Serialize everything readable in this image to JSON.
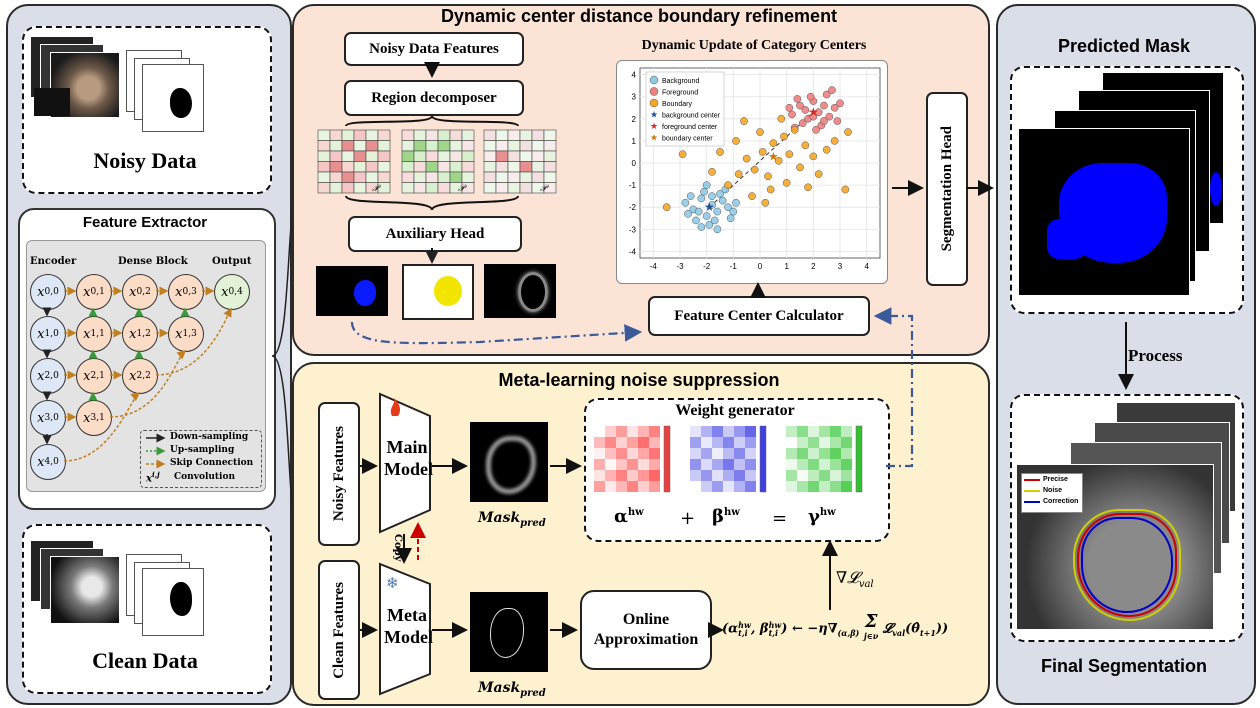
{
  "left_panel": {
    "noisy_data_label": "Noisy Data",
    "feature_extractor_title": "Feature Extractor",
    "encoder_label": "Encoder",
    "dense_block_label": "Dense Block",
    "output_label": "Output",
    "clean_data_label": "Clean Data",
    "nodes": {
      "n00": "0,0",
      "n01": "0,1",
      "n02": "0,2",
      "n03": "0,3",
      "n04": "0,4",
      "n10": "1,0",
      "n11": "1,1",
      "n12": "1,2",
      "n13": "1,3",
      "n20": "2,0",
      "n21": "2,1",
      "n22": "2,2",
      "n30": "3,0",
      "n31": "3,1",
      "n40": "4,0"
    },
    "node_symbol": "x",
    "legend": {
      "down": "Down-sampling",
      "up": "Up-sampling",
      "skip": "Skip Connection",
      "conv_symbol": "x",
      "conv_sup": "i,j",
      "conv": "Convolution"
    }
  },
  "dcd": {
    "title": "Dynamic center distance boundary refinement",
    "noisy_features": "Noisy Data Features",
    "region_decomposer": "Region decomposer",
    "p_labels": [
      "𝒫",
      "𝒫",
      "𝒫"
    ],
    "auxiliary_head": "Auxiliary Head",
    "chart_title": "Dynamic Update of Category Centers",
    "feature_center_calculator": "Feature Center Calculator",
    "segmentation_head": "Segmentation Head"
  },
  "meta": {
    "title": "Meta-learning noise suppression",
    "noisy_features": "Noisy Features",
    "clean_features": "Clean Features",
    "main_model": "Main\nModel",
    "meta_model": "Meta\nModel",
    "copy": "Copy",
    "mask_pred": "Mask",
    "mask_sub": "pred",
    "weight_generator": "Weight generator",
    "alpha": "α",
    "beta": "β",
    "gamma": "γ",
    "hw": "hw",
    "plus": "+",
    "equals": "=",
    "online_approx": "Online\nApproximation",
    "grad_label": "∇𝓛",
    "grad_sub": "val",
    "formula": "(α, β) ← −η∇(α,β) Σ 𝓛val(θ̂t+1))",
    "formula_lhs": "(α",
    "formula_rhs": "← −η∇",
    "formula_sum": "Σ",
    "formula_sum_sub": "j∈ν",
    "formula_loss": "𝓛",
    "formula_loss_sub": "val",
    "formula_theta": "(θ̂",
    "formula_theta_sub": "t+1",
    "formula_end": "))",
    "formula_sub_ab": "(α,β)",
    "formula_comma": ",",
    "formula_beta": "β",
    "formula_tihw": "hw",
    "formula_ti": "t,i"
  },
  "right_panel": {
    "predicted_mask": "Predicted Mask",
    "process": "Process",
    "final_segmentation": "Final Segmentation",
    "legend": [
      "Precise",
      "Noise",
      "Correction"
    ]
  },
  "colors": {
    "background_cluster": "#8ecae6",
    "foreground_cluster": "#f08080",
    "boundary_cluster": "#f5a623",
    "dcd_panel": "#fbe3d6",
    "meta_panel": "#fdf1cf",
    "side_panel": "#d9dee8"
  },
  "chart_data": {
    "type": "scatter",
    "title": "Dynamic Update of Category Centers",
    "xlim": [
      -4.5,
      4.5
    ],
    "ylim": [
      -4.3,
      4.3
    ],
    "xticks": [
      -4,
      -3,
      -2,
      -1,
      0,
      1,
      2,
      3,
      4
    ],
    "yticks": [
      -4,
      -3,
      -2,
      -1,
      0,
      1,
      2,
      3,
      4
    ],
    "grid": true,
    "legend_position": "top-left",
    "legend": [
      "Background",
      "Foreground",
      "Boundary",
      "background center",
      "foreground center",
      "boundary center"
    ],
    "series": [
      {
        "name": "Background",
        "color": "#8ecae6",
        "points": [
          [
            -2.8,
            -1.8
          ],
          [
            -2.5,
            -2.1
          ],
          [
            -2.2,
            -1.6
          ],
          [
            -2.0,
            -2.4
          ],
          [
            -1.8,
            -1.9
          ],
          [
            -1.6,
            -2.2
          ],
          [
            -1.4,
            -1.7
          ],
          [
            -1.2,
            -2.0
          ],
          [
            -2.4,
            -2.6
          ],
          [
            -2.1,
            -1.3
          ],
          [
            -1.9,
            -2.8
          ],
          [
            -1.5,
            -1.4
          ],
          [
            -1.1,
            -2.5
          ],
          [
            -2.6,
            -1.5
          ],
          [
            -1.7,
            -2.6
          ],
          [
            -2.3,
            -2.2
          ],
          [
            -1.3,
            -1.2
          ],
          [
            -0.9,
            -1.8
          ],
          [
            -2.0,
            -1.0
          ],
          [
            -1.6,
            -3.0
          ],
          [
            -2.7,
            -2.3
          ],
          [
            -1.0,
            -2.2
          ],
          [
            -1.8,
            -1.5
          ],
          [
            -2.2,
            -2.9
          ]
        ]
      },
      {
        "name": "Foreground",
        "color": "#f08080",
        "points": [
          [
            1.2,
            2.2
          ],
          [
            1.5,
            2.6
          ],
          [
            1.8,
            2.0
          ],
          [
            2.0,
            2.8
          ],
          [
            2.2,
            2.3
          ],
          [
            2.4,
            2.6
          ],
          [
            1.6,
            1.8
          ],
          [
            2.6,
            2.1
          ],
          [
            2.8,
            2.5
          ],
          [
            1.9,
            3.0
          ],
          [
            2.3,
            1.7
          ],
          [
            1.4,
            2.9
          ],
          [
            2.5,
            3.1
          ],
          [
            2.1,
            1.5
          ],
          [
            1.7,
            2.4
          ],
          [
            2.9,
            1.9
          ],
          [
            3.0,
            2.7
          ],
          [
            1.3,
            1.6
          ],
          [
            2.7,
            3.3
          ],
          [
            2.0,
            2.1
          ],
          [
            1.1,
            2.5
          ],
          [
            2.4,
            1.9
          ]
        ]
      },
      {
        "name": "Boundary",
        "color": "#f5a623",
        "points": [
          [
            -1.2,
            -1.0
          ],
          [
            -0.8,
            -0.5
          ],
          [
            -0.5,
            0.2
          ],
          [
            -0.2,
            -0.3
          ],
          [
            0.1,
            0.5
          ],
          [
            0.3,
            -0.6
          ],
          [
            0.5,
            0.9
          ],
          [
            0.7,
            0.1
          ],
          [
            0.9,
            1.2
          ],
          [
            1.1,
            0.4
          ],
          [
            1.3,
            1.5
          ],
          [
            1.5,
            -0.2
          ],
          [
            1.7,
            0.8
          ],
          [
            2.0,
            0.3
          ],
          [
            2.2,
            -0.5
          ],
          [
            2.5,
            0.6
          ],
          [
            -1.5,
            0.5
          ],
          [
            -0.9,
            1.0
          ],
          [
            0.0,
            1.4
          ],
          [
            0.4,
            -1.2
          ],
          [
            1.0,
            -0.9
          ],
          [
            2.8,
            1.0
          ],
          [
            3.2,
            -1.2
          ],
          [
            -0.3,
            -1.5
          ],
          [
            0.8,
            2.0
          ],
          [
            -2.9,
            0.4
          ],
          [
            -3.5,
            -2.0
          ],
          [
            1.8,
            -1.1
          ],
          [
            -1.8,
            -0.4
          ],
          [
            0.2,
            -1.8
          ],
          [
            3.3,
            1.4
          ],
          [
            -0.6,
            1.9
          ]
        ]
      }
    ],
    "centers": [
      {
        "name": "background center",
        "color": "#1f4e8c",
        "x": -1.9,
        "y": -2.0
      },
      {
        "name": "foreground center",
        "color": "#d62728",
        "x": 2.0,
        "y": 2.3
      },
      {
        "name": "boundary center",
        "color": "#c77800",
        "x": 0.5,
        "y": 0.3
      }
    ]
  }
}
